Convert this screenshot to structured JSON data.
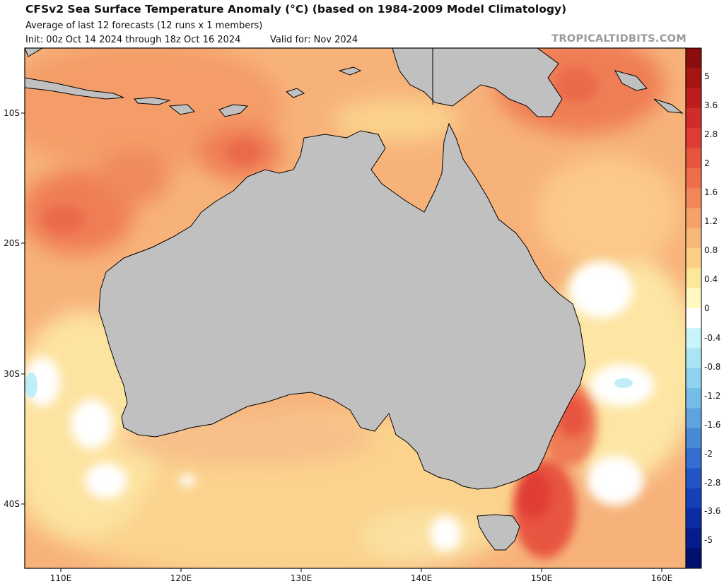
{
  "header": {
    "title": "CFSv2 Sea Surface Temperature Anomaly (°C) (based on 1984-2009 Model Climatology)",
    "subtitle": "Average of last 12 forecasts (12 runs x 1 members)",
    "init": "Init: 00z Oct 14 2024 through 18z Oct 16 2024",
    "valid": "Valid for: Nov 2024",
    "credit": "TROPICALTIDBITS.COM"
  },
  "map": {
    "lat_labels": [
      "10S",
      "20S",
      "30S",
      "40S"
    ],
    "lon_labels": [
      "110E",
      "120E",
      "130E",
      "140E",
      "150E",
      "160E"
    ],
    "land_color": "#c0c0c0",
    "border_color": "#000000"
  },
  "colorbar": {
    "labels": [
      "5",
      "3.6",
      "2.8",
      "2",
      "1.6",
      "1.2",
      "0.8",
      "0.4",
      "0",
      "-0.4",
      "-0.8",
      "-1.2",
      "-1.6",
      "-2",
      "-2.8",
      "-3.6",
      "-5"
    ],
    "colors": [
      "#8b0d0d",
      "#a81414",
      "#bf1d1d",
      "#d12b2b",
      "#e03c34",
      "#e8553f",
      "#ef6d4b",
      "#f3875a",
      "#f6a06a",
      "#f8b87a",
      "#fbd085",
      "#fde89a",
      "#fff8c0",
      "#ffffff",
      "#c8f5fb",
      "#a8e6f5",
      "#8dd2ee",
      "#74bde6",
      "#5ea3de",
      "#4889d6",
      "#346ed0",
      "#2256c6",
      "#1640b8",
      "#0c2ca6",
      "#061c8e",
      "#021070"
    ]
  }
}
